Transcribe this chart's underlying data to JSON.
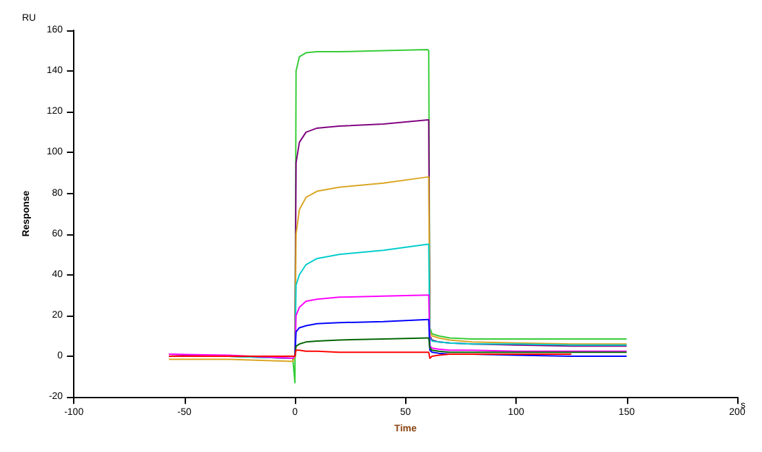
{
  "chart_data": {
    "type": "line",
    "xlabel": "Time",
    "ylabel": "Response",
    "annotations": [
      "RU",
      "s"
    ],
    "x": [
      -57,
      -30,
      -1,
      0,
      0.5,
      2,
      5,
      10,
      20,
      40,
      60,
      60.5,
      61,
      62,
      65,
      70,
      80,
      100,
      125,
      150
    ],
    "xlim": [
      -100,
      200
    ],
    "xticks": [
      -100,
      -50,
      0,
      50,
      100,
      150,
      200
    ],
    "ylim": [
      -20,
      160
    ],
    "yticks": [
      -20,
      0,
      20,
      40,
      60,
      80,
      100,
      120,
      140,
      160
    ],
    "grid": false,
    "marker": "none",
    "line_style": "solid",
    "series": [
      {
        "color": "#33cc33",
        "values": [
          0,
          0,
          -1,
          -13,
          140,
          147,
          149,
          149.5,
          149.5,
          150,
          150.5,
          150,
          14,
          11,
          10,
          9,
          8.5,
          8.5,
          8.5,
          8.5
        ]
      },
      {
        "color": "#800080",
        "values": [
          1,
          0,
          -1,
          0,
          95,
          105,
          110,
          112,
          113,
          114,
          116,
          116,
          10,
          8,
          7,
          6.5,
          6,
          5.5,
          5,
          5
        ]
      },
      {
        "color": "#daa520",
        "values": [
          -1.5,
          -1.5,
          -2.5,
          0,
          60,
          72,
          78,
          81,
          83,
          85,
          88,
          88,
          12,
          10,
          9,
          8,
          7,
          6.5,
          6,
          6
        ]
      },
      {
        "color": "#00cccc",
        "values": [
          0,
          0,
          -1,
          0,
          35,
          40,
          45,
          48,
          50,
          52,
          55,
          55,
          9,
          7.5,
          7,
          6.5,
          6,
          6,
          5.5,
          5.5
        ]
      },
      {
        "color": "#ff00ff",
        "values": [
          1,
          0.5,
          -1,
          0,
          20,
          24,
          27,
          28,
          29,
          29.5,
          30,
          30,
          5,
          4,
          3.5,
          3,
          3,
          2.5,
          2.5,
          2.5
        ]
      },
      {
        "color": "#0000ff",
        "values": [
          0,
          0,
          0,
          0,
          12,
          14,
          15,
          16,
          16.5,
          17,
          18,
          18,
          3,
          2,
          1.5,
          1,
          1,
          0.5,
          0,
          0
        ]
      },
      {
        "color": "#006400",
        "values": [
          null,
          null,
          0,
          0,
          5,
          6,
          7,
          7.5,
          8,
          8.5,
          9,
          9,
          4,
          3,
          2.5,
          2,
          2,
          2,
          2,
          2
        ]
      },
      {
        "color": "#ff0000",
        "values": [
          0,
          0,
          0,
          0,
          3,
          3,
          2.5,
          2.5,
          2,
          2,
          2,
          2,
          -1,
          0,
          0.5,
          1,
          1,
          1,
          1,
          null
        ]
      }
    ]
  }
}
